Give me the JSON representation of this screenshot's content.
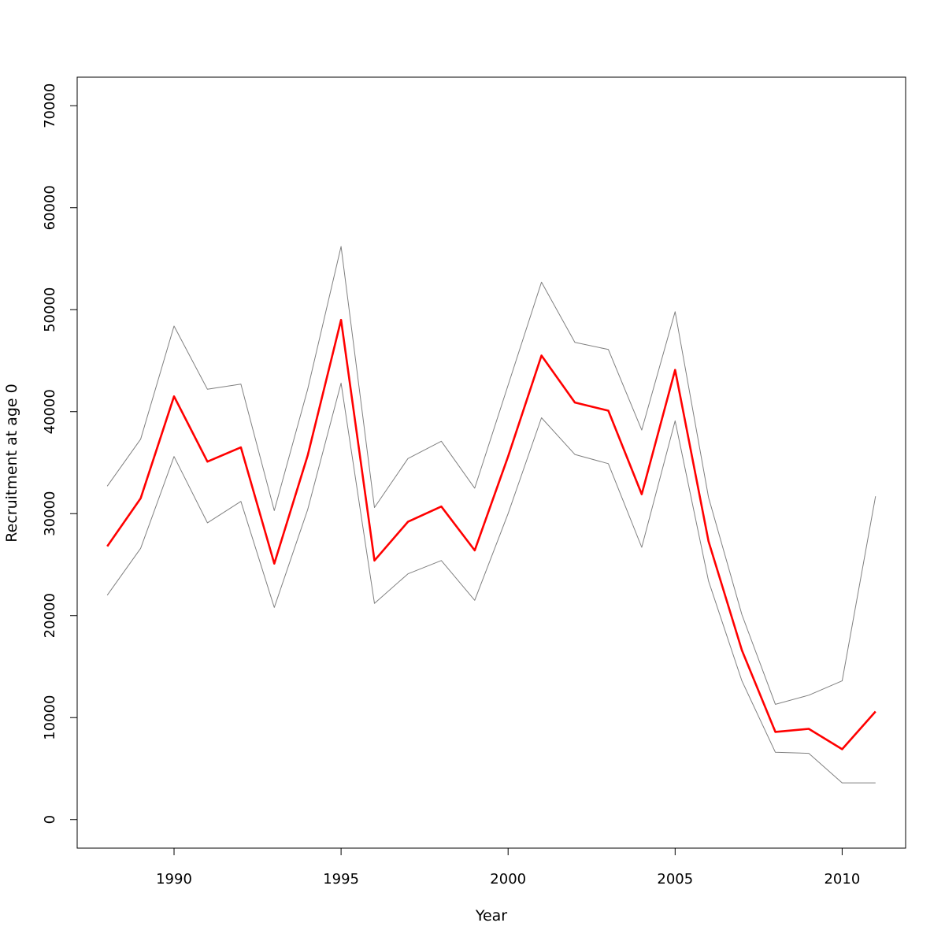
{
  "chart_data": {
    "type": "line",
    "title": "",
    "xlabel": "Year",
    "ylabel": "Recruitment at age 0",
    "xlim": [
      1987.1,
      2011.9
    ],
    "ylim": [
      -2800,
      72800
    ],
    "x_ticks": [
      1990,
      1995,
      2000,
      2005,
      2010
    ],
    "y_ticks": [
      0,
      10000,
      20000,
      30000,
      40000,
      50000,
      60000,
      70000
    ],
    "grid": false,
    "legend": "none",
    "x": [
      1988,
      1989,
      1990,
      1991,
      1992,
      1993,
      1994,
      1995,
      1996,
      1997,
      1998,
      1999,
      2000,
      2001,
      2002,
      2003,
      2004,
      2005,
      2006,
      2007,
      2008,
      2009,
      2010,
      2011
    ],
    "series": [
      {
        "color": "#ff0000",
        "values": [
          26800,
          31500,
          41500,
          35100,
          36500,
          25100,
          35700,
          49000,
          25400,
          29200,
          30700,
          26400,
          35600,
          45500,
          40900,
          40100,
          31900,
          44100,
          27300,
          16600,
          8600,
          8900,
          6900,
          10600
        ]
      },
      {
        "color": "#808080",
        "values": [
          32700,
          37300,
          48400,
          42200,
          42700,
          30300,
          42200,
          56200,
          30600,
          35400,
          37100,
          32500,
          42600,
          52700,
          46800,
          46100,
          38200,
          49800,
          31600,
          20100,
          11300,
          12200,
          13600,
          31700
        ]
      },
      {
        "color": "#808080",
        "values": [
          22000,
          26600,
          35600,
          29100,
          31200,
          20800,
          30400,
          42800,
          21200,
          24100,
          25400,
          21500,
          30000,
          39400,
          35800,
          34900,
          26700,
          39100,
          23400,
          13600,
          6600,
          6500,
          3600,
          3600
        ]
      }
    ]
  }
}
